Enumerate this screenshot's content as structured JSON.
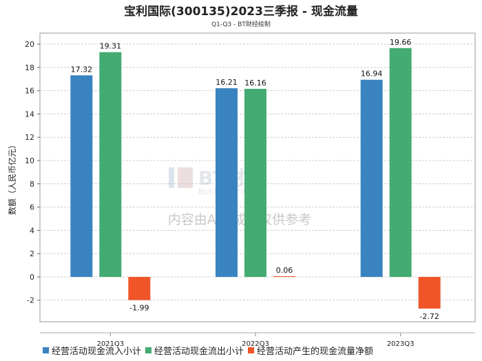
{
  "chart_data": {
    "type": "bar",
    "title": "宝利国际(300135)2023三季报 - 现金流量",
    "subtitle": "Q1-Q3 - BT财经绘制",
    "xlabel": "",
    "ylabel": "数额（人民币亿元）",
    "categories": [
      "2021Q3",
      "2022Q3",
      "2023Q3"
    ],
    "series": [
      {
        "name": "经营活动现金流入小计",
        "color": "#3a83c1",
        "values": [
          17.32,
          16.21,
          16.94
        ]
      },
      {
        "name": "经营活动现金流出小计",
        "color": "#44ab72",
        "values": [
          19.31,
          16.16,
          19.66
        ]
      },
      {
        "name": "经营活动产生的现金流量净额",
        "color": "#f0552a",
        "values": [
          -1.99,
          0.06,
          -2.72
        ]
      }
    ],
    "yticks": [
      -2,
      0,
      2,
      4,
      6,
      8,
      10,
      12,
      14,
      16,
      18,
      20
    ],
    "ylim": [
      -3.85,
      20.95
    ],
    "grid": true,
    "legend_position": "bottom"
  },
  "watermark": {
    "brand": "BT财经",
    "brand_en": "BUSINESSTIMES",
    "notice": "内容由AI生成，仅供参考"
  }
}
